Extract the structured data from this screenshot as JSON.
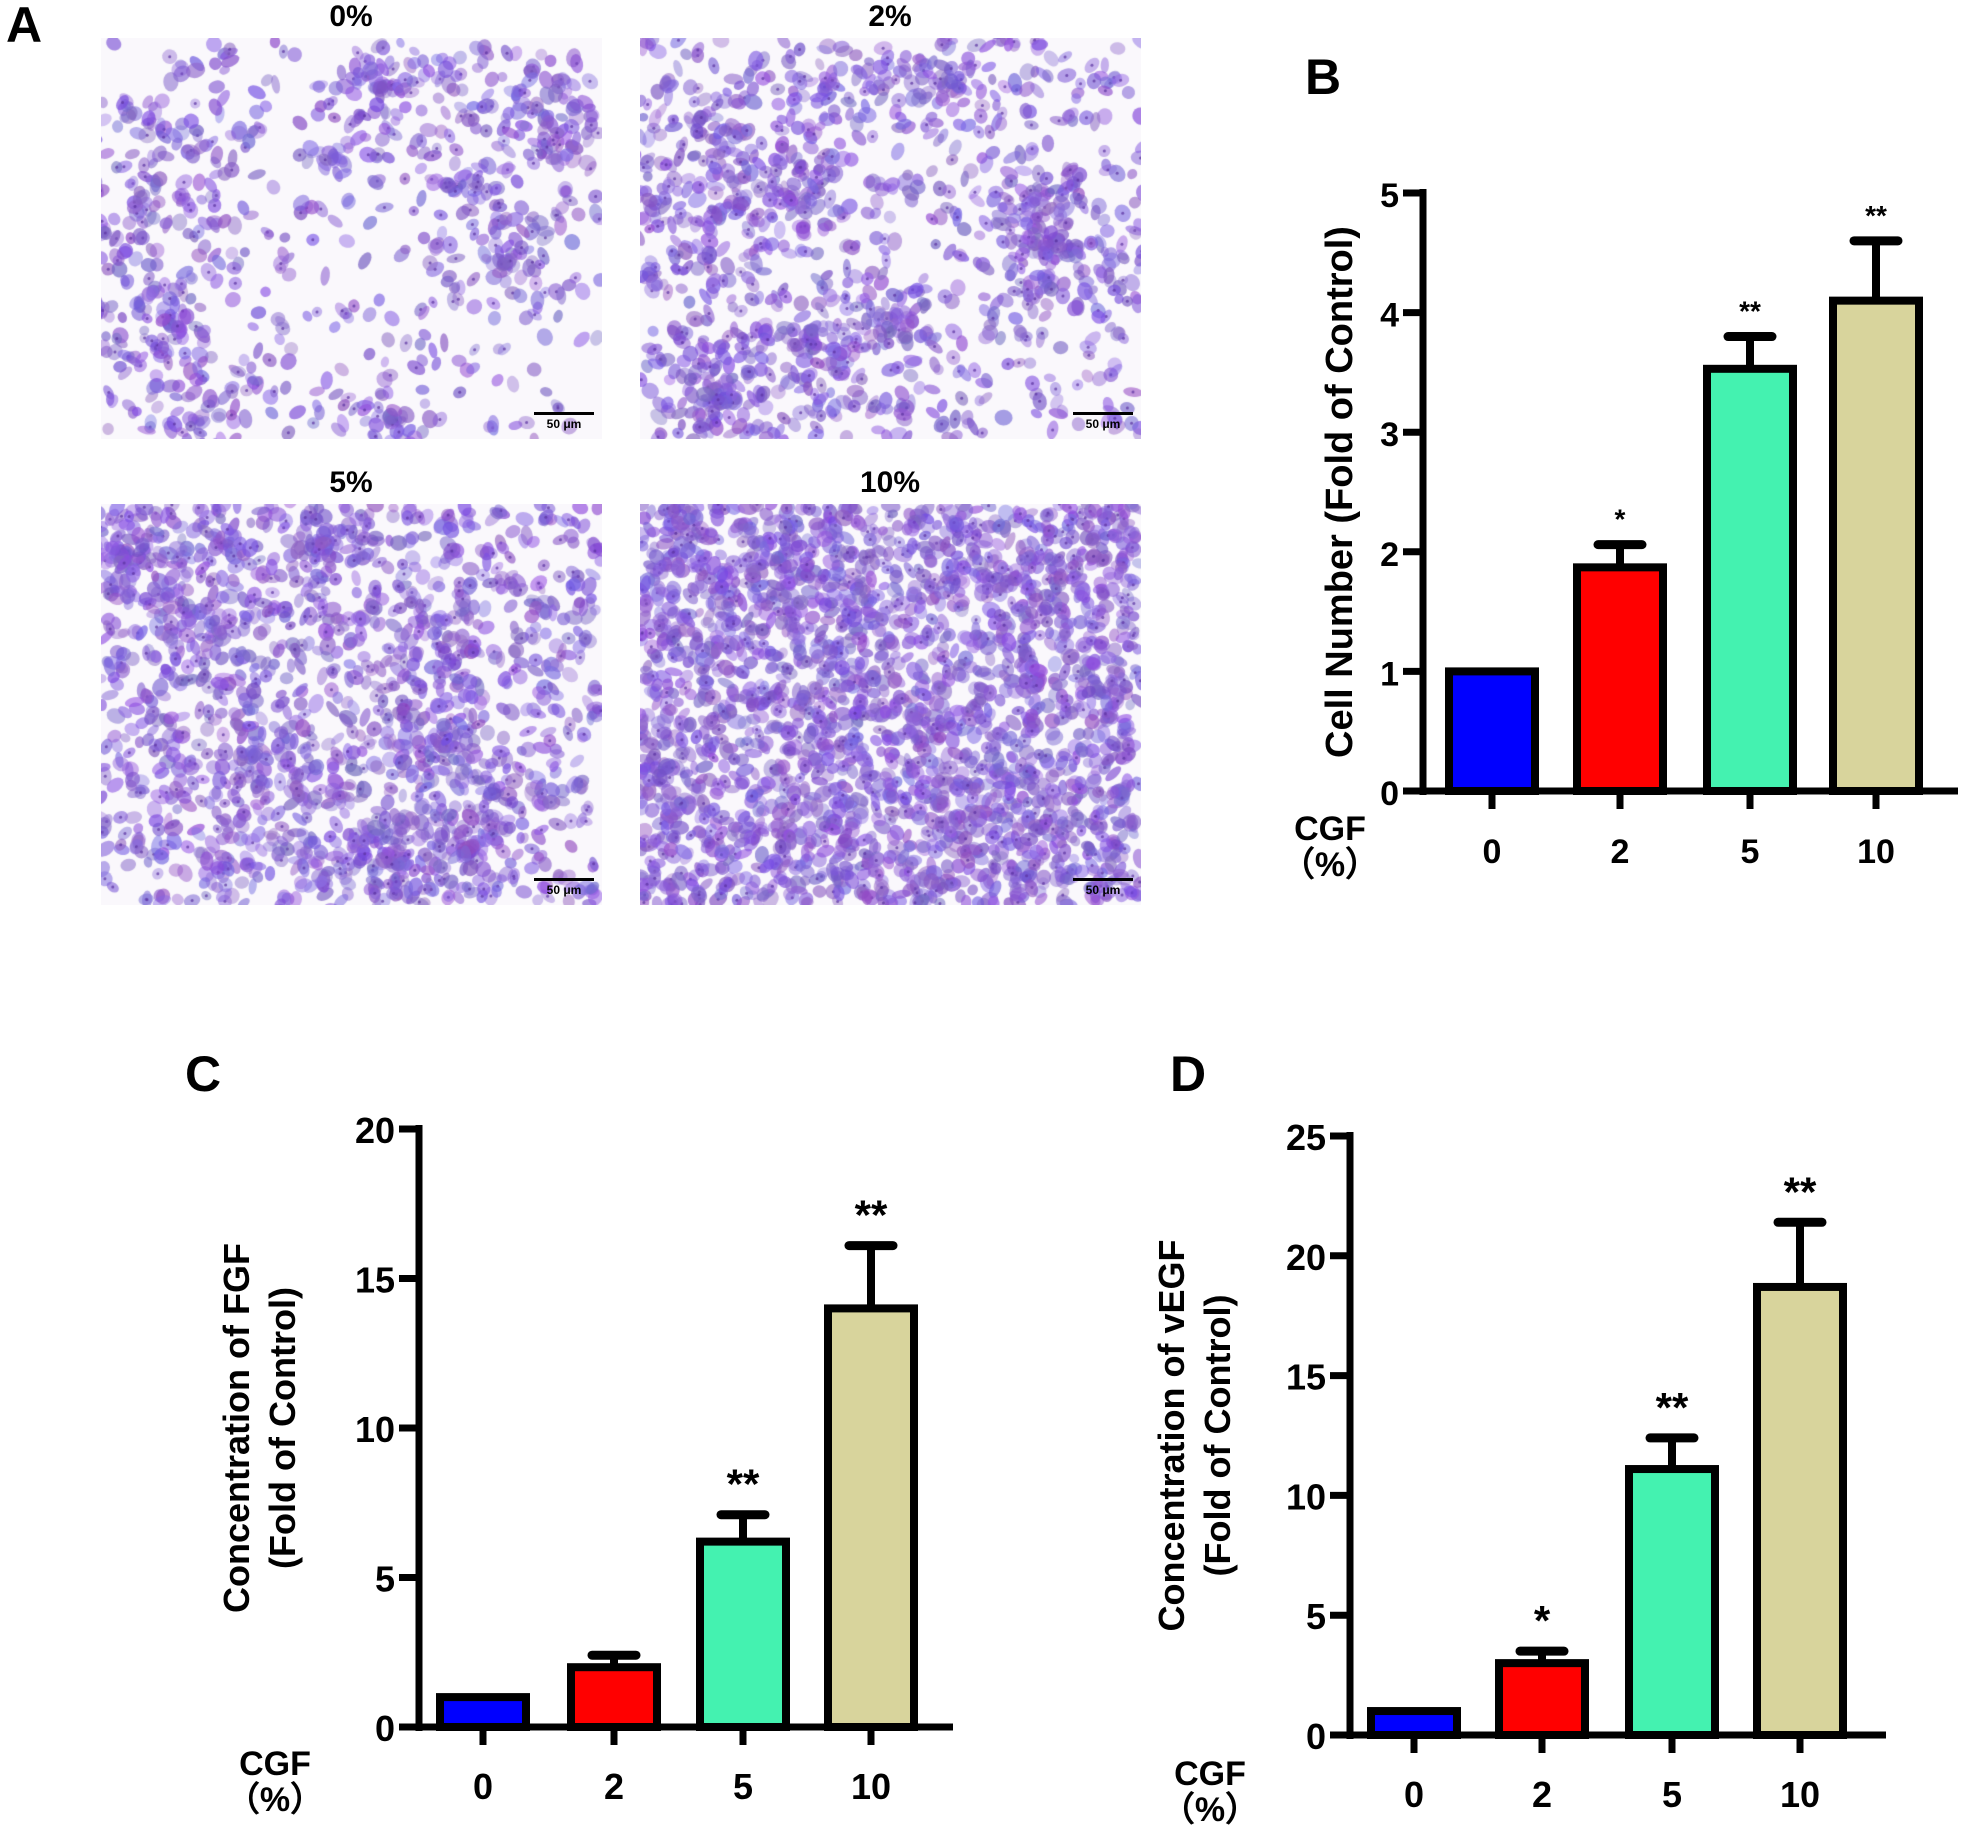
{
  "panel_labels": [
    "A",
    "B",
    "C",
    "D"
  ],
  "micrographs": [
    {
      "title": "0%",
      "scale_bar": "50 μm",
      "density": 0.35
    },
    {
      "title": "2%",
      "scale_bar": "50 μm",
      "density": 0.5
    },
    {
      "title": "5%",
      "scale_bar": "50 μm",
      "density": 0.65
    },
    {
      "title": "10%",
      "scale_bar": "50 μm",
      "density": 0.95
    }
  ],
  "colors": {
    "bar_0": "#0000ff",
    "bar_2": "#ff0000",
    "bar_5": "#44f2b0",
    "bar_10": "#d8d49c",
    "stain": "#7b52c9"
  },
  "chart_data": [
    {
      "panel": "B",
      "type": "bar",
      "categories": [
        "0",
        "2",
        "5",
        "10"
      ],
      "values": [
        1.0,
        1.87,
        3.53,
        4.1
      ],
      "error_upper": [
        0,
        0.19,
        0.27,
        0.5
      ],
      "significance": [
        "",
        "*",
        "**",
        "**"
      ],
      "xlabel": "CGF\n（%）",
      "ylabel": "Cell Number (Fold of Control)",
      "ylim": [
        0,
        5
      ],
      "yticks": [
        0,
        1,
        2,
        3,
        4,
        5
      ],
      "grid": false
    },
    {
      "panel": "C",
      "type": "bar",
      "categories": [
        "0",
        "2",
        "5",
        "10"
      ],
      "values": [
        1.0,
        2.0,
        6.2,
        14.0
      ],
      "error_upper": [
        0,
        0.4,
        0.9,
        2.1
      ],
      "significance": [
        "",
        "",
        "**",
        "**"
      ],
      "xlabel": "CGF\n（%）",
      "ylabel": "Concentration of FGF\n(Fold of Control)",
      "ylim": [
        0,
        20
      ],
      "yticks": [
        0,
        5,
        10,
        15,
        20
      ],
      "grid": false
    },
    {
      "panel": "D",
      "type": "bar",
      "categories": [
        "0",
        "2",
        "5",
        "10"
      ],
      "values": [
        1.0,
        3.0,
        11.1,
        18.7
      ],
      "error_upper": [
        0,
        0.5,
        1.3,
        2.7
      ],
      "significance": [
        "",
        "*",
        "**",
        "**"
      ],
      "xlabel": "CGF\n（%）",
      "ylabel": "Concentration of vEGF\n(Fold of Control)",
      "ylim": [
        0,
        25
      ],
      "yticks": [
        0,
        5,
        10,
        15,
        20,
        25
      ],
      "grid": false
    }
  ]
}
